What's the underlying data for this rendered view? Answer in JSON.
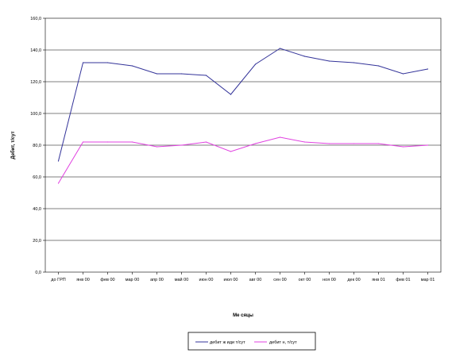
{
  "chart_data": {
    "type": "line",
    "xlabel": "Ме сяцы",
    "ylabel": "Дебит, т/сут",
    "ylim": [
      0,
      160
    ],
    "yticks": [
      "0,0",
      "20,0",
      "40,0",
      "60,0",
      "80,0",
      "100,0",
      "120,0",
      "140,0",
      "160,0"
    ],
    "categories": [
      "до ГРП",
      "янв 00",
      "фев 00",
      "мар 00",
      "апр 00",
      "май 00",
      "июн 00",
      "июл 00",
      "авг 00",
      "сен 00",
      "окт 00",
      "ноя 00",
      "дек 00",
      "янв 01",
      "фев 01",
      "мар 01"
    ],
    "grid": true,
    "legend_position": "bottom",
    "series": [
      {
        "name": "дебит ж иди т/сут",
        "color": "#333399",
        "values": [
          70,
          132,
          132,
          130,
          125,
          125,
          124,
          112,
          131,
          141,
          136,
          133,
          132,
          130,
          125,
          128
        ]
      },
      {
        "name": "дебит н, т/сут",
        "color": "#e040e0",
        "values": [
          56,
          82,
          82,
          82,
          79,
          80,
          82,
          76,
          81,
          85,
          82,
          81,
          81,
          81,
          79,
          80
        ]
      }
    ]
  }
}
